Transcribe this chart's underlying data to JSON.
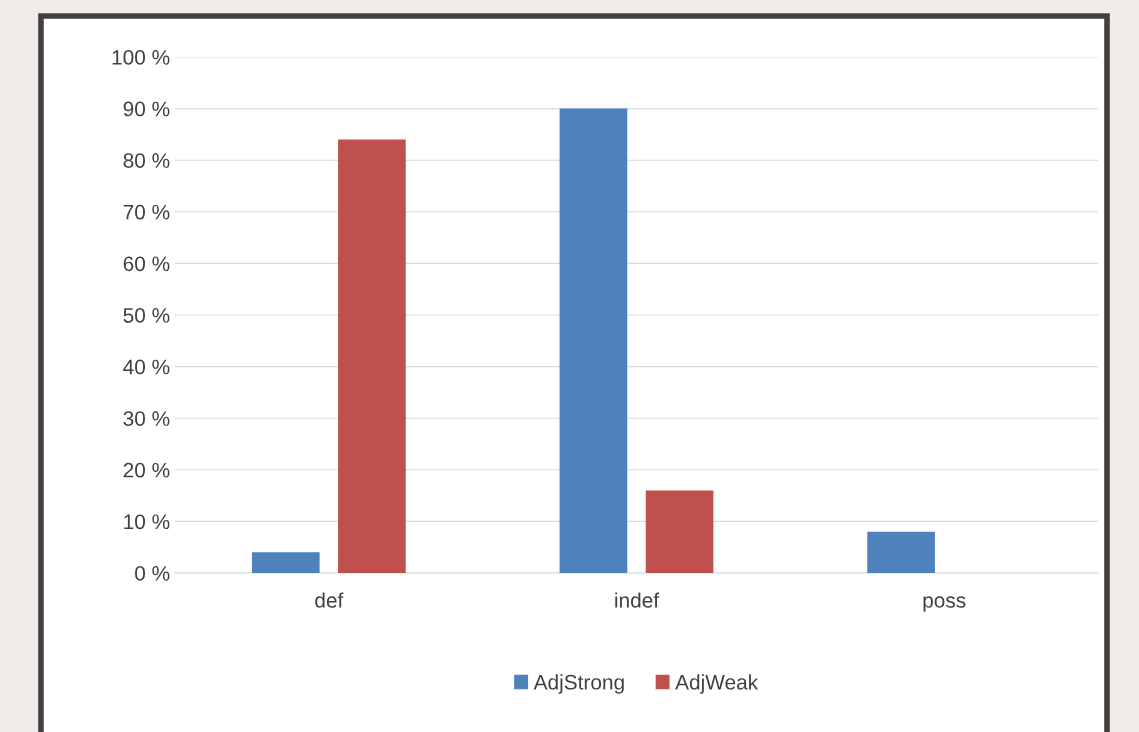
{
  "chart_data": {
    "type": "bar",
    "categories": [
      "def",
      "indef",
      "poss"
    ],
    "series": [
      {
        "name": "AdjStrong",
        "color": "#4f81bd",
        "values": [
          4,
          90,
          8
        ]
      },
      {
        "name": "AdjWeak",
        "color": "#c0504d",
        "values": [
          84,
          16,
          0
        ]
      }
    ],
    "ylim": [
      0,
      100
    ],
    "yticks": [
      {
        "value": 0,
        "label": "0 %"
      },
      {
        "value": 10,
        "label": "10 %"
      },
      {
        "value": 20,
        "label": "20 %"
      },
      {
        "value": 30,
        "label": "30 %"
      },
      {
        "value": 40,
        "label": "40 %"
      },
      {
        "value": 50,
        "label": "50 %"
      },
      {
        "value": 60,
        "label": "60 %"
      },
      {
        "value": 70,
        "label": "70 %"
      },
      {
        "value": 80,
        "label": "80 %"
      },
      {
        "value": 90,
        "label": "90 %"
      },
      {
        "value": 100,
        "label": "100 %"
      }
    ],
    "grid": "y",
    "legend": "bottom"
  }
}
